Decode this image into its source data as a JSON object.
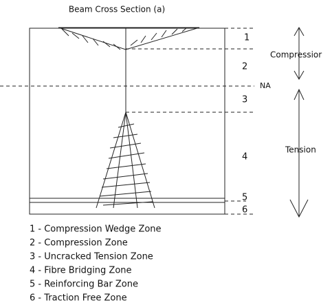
{
  "title": "Beam Cross Section (a)",
  "zones": [
    "1",
    "2",
    "3",
    "4",
    "5",
    "6"
  ],
  "neutral_axis": "NA",
  "arrows": {
    "compression": "Compressior",
    "tension": "Tension"
  },
  "legend": [
    "1 - Compression Wedge Zone",
    "2 - Compression Zone",
    "3 - Uncracked Tension Zone",
    "4 - Fibre Bridging Zone",
    "5 - Reinforcing Bar Zone",
    "6 - Traction Free Zone"
  ]
}
